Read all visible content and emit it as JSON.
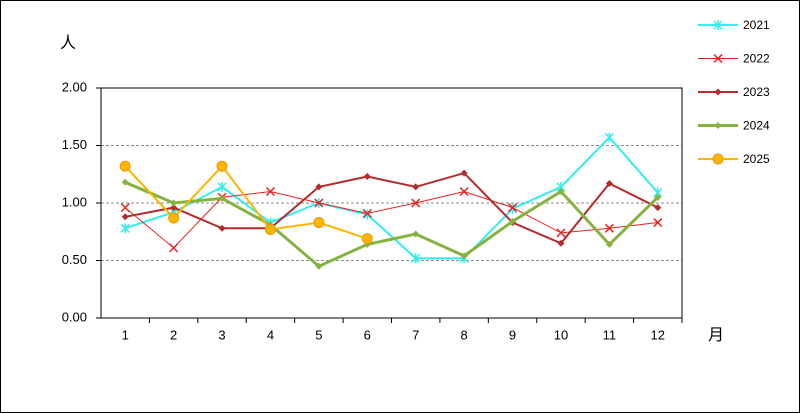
{
  "chart_data": {
    "type": "line",
    "y_label": "人",
    "x_label": "月",
    "categories": [
      "1",
      "2",
      "3",
      "4",
      "5",
      "6",
      "7",
      "8",
      "9",
      "10",
      "11",
      "12"
    ],
    "ylim": [
      0,
      2
    ],
    "yticks": [
      {
        "value": 0,
        "label": "0.00"
      },
      {
        "value": 0.5,
        "label": "0.50"
      },
      {
        "value": 1,
        "label": "1.00"
      },
      {
        "value": 1.5,
        "label": "1.50"
      },
      {
        "value": 2,
        "label": "2.00"
      }
    ],
    "grid": true,
    "legend": "right",
    "series": [
      {
        "name": "2021",
        "color": "#33eeee",
        "marker": "asterisk",
        "line_width": 2,
        "values": [
          0.78,
          0.92,
          1.14,
          0.83,
          1.0,
          0.9,
          0.52,
          0.52,
          0.95,
          1.14,
          1.57,
          1.09
        ]
      },
      {
        "name": "2022",
        "color": "#e8231e",
        "marker": "x",
        "line_width": 1,
        "values": [
          0.96,
          0.61,
          1.05,
          1.1,
          1.0,
          0.91,
          1.0,
          1.1,
          0.96,
          0.74,
          0.78,
          0.83
        ]
      },
      {
        "name": "2023",
        "color": "#b52a2a",
        "marker": "diamond",
        "line_width": 2,
        "values": [
          0.88,
          0.96,
          0.78,
          0.78,
          1.14,
          1.23,
          1.14,
          1.26,
          0.83,
          0.65,
          1.17,
          0.96
        ]
      },
      {
        "name": "2024",
        "color": "#86b340",
        "marker": "diamond",
        "line_width": 3,
        "values": [
          1.18,
          1.0,
          1.04,
          0.81,
          0.45,
          0.64,
          0.73,
          0.54,
          0.84,
          1.1,
          0.64,
          1.05
        ]
      },
      {
        "name": "2025",
        "color": "#ffb400",
        "marker": "circle",
        "line_width": 2,
        "values": [
          1.32,
          0.87,
          1.32,
          0.77,
          0.83,
          0.69,
          null,
          null,
          null,
          null,
          null,
          null
        ]
      }
    ]
  }
}
